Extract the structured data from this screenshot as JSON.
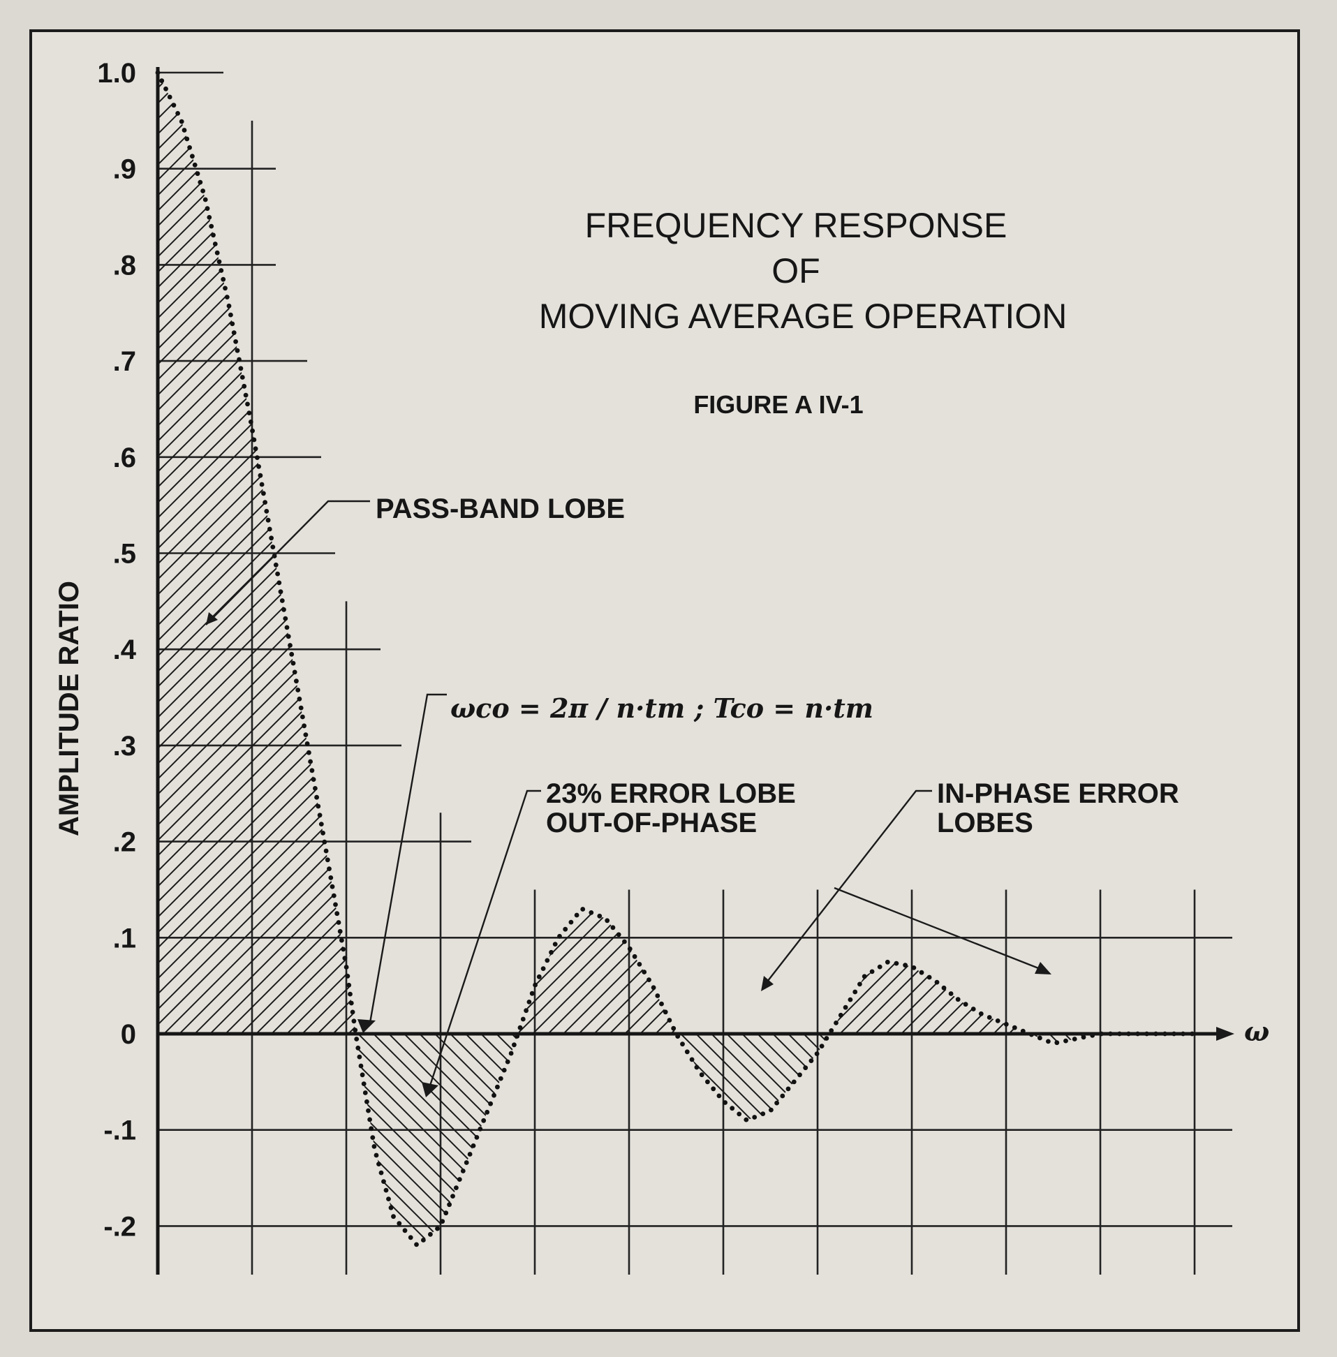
{
  "chart_data": {
    "type": "line",
    "title_lines": [
      "FREQUENCY RESPONSE",
      "OF",
      "MOVING AVERAGE OPERATION"
    ],
    "subtitle": "FIGURE A IV-1",
    "ylabel": "AMPLITUDE RATIO",
    "xlabel": "ω",
    "yticks": [
      "1.0",
      ".9",
      ".8",
      ".7",
      ".6",
      ".5",
      ".4",
      ".3",
      ".2",
      ".1",
      "0",
      "-.1",
      "-.2"
    ],
    "ylim": [
      -0.25,
      1.0
    ],
    "xlim": [
      0,
      11
    ],
    "grid": true,
    "fill": "hatched",
    "series": [
      {
        "x": [
          0,
          0.25,
          0.5,
          0.75,
          1.0,
          1.25,
          1.5,
          1.75,
          2.0,
          2.1,
          2.3,
          2.5,
          2.75,
          3.0,
          3.25,
          3.5,
          3.75,
          4.0,
          4.25,
          4.5,
          4.75,
          5.0,
          5.25,
          5.5,
          5.75,
          6.0,
          6.25,
          6.5,
          6.75,
          7.0,
          7.25,
          7.5,
          7.75,
          8.0,
          8.25,
          8.5,
          8.75,
          9.0,
          9.25,
          9.5,
          9.75,
          10.0,
          10.25,
          10.5,
          10.75,
          11.0
        ],
        "y": [
          1.0,
          0.95,
          0.87,
          0.76,
          0.63,
          0.49,
          0.35,
          0.21,
          0.07,
          0.0,
          -0.12,
          -0.19,
          -0.22,
          -0.2,
          -0.14,
          -0.08,
          -0.02,
          0.05,
          0.1,
          0.13,
          0.12,
          0.09,
          0.05,
          0.0,
          -0.04,
          -0.07,
          -0.09,
          -0.08,
          -0.05,
          -0.02,
          0.02,
          0.06,
          0.075,
          0.07,
          0.055,
          0.035,
          0.02,
          0.01,
          0.0,
          -0.01,
          -0.005,
          0.0,
          0.0,
          0.0,
          0.0,
          0.0
        ]
      }
    ],
    "annotations": [
      "PASS-BAND LOBE",
      "23% ERROR LOBE",
      "OUT-OF-PHASE",
      "IN-PHASE ERROR",
      "LOBES"
    ],
    "formula": "ωco = 2π / n·tm ;  Tco = n·tm"
  }
}
